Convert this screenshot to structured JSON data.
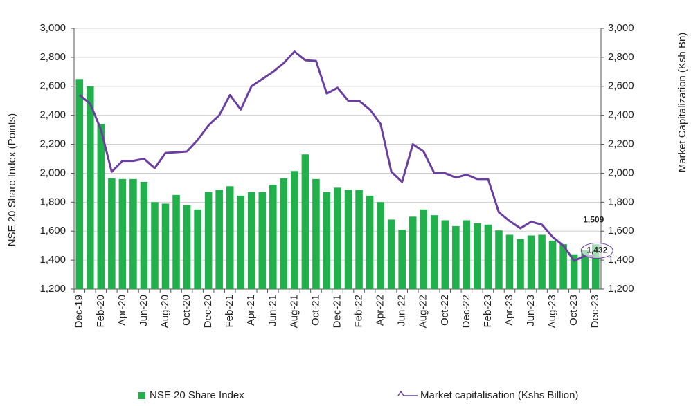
{
  "chart_data": {
    "type": "bar-line",
    "categories": [
      "Dec-19",
      null,
      "Feb-20",
      null,
      "Apr-20",
      null,
      "Jun-20",
      null,
      "Aug-20",
      null,
      "Oct-20",
      null,
      "Dec-20",
      null,
      "Feb-21",
      null,
      "Apr-21",
      null,
      "Jun-21",
      null,
      "Aug-21",
      null,
      "Oct-21",
      null,
      "Dec-21",
      null,
      "Feb-22",
      null,
      "Apr-22",
      null,
      "Jun-22",
      null,
      "Aug-22",
      null,
      "Oct-22",
      null,
      "Dec-22",
      null,
      "Feb-23",
      null,
      "Apr-23",
      null,
      "Jun-23",
      null,
      "Aug-23",
      null,
      "Oct-23",
      null,
      "Dec-23"
    ],
    "series": [
      {
        "name": "NSE 20 Share Index",
        "color": "#21b04b",
        "kind": "bar",
        "values": [
          2650,
          2600,
          2340,
          1965,
          1960,
          1960,
          1940,
          1800,
          1790,
          1850,
          1780,
          1750,
          1870,
          1885,
          1910,
          1845,
          1870,
          1870,
          1920,
          1965,
          2015,
          2130,
          1960,
          1870,
          1900,
          1885,
          1885,
          1845,
          1800,
          1680,
          1610,
          1700,
          1750,
          1710,
          1675,
          1635,
          1675,
          1655,
          1645,
          1605,
          1575,
          1545,
          1570,
          1575,
          1535,
          1510,
          1440,
          1470,
          1509
        ],
        "value_labels": [
          null,
          null,
          null,
          null,
          null,
          null,
          null,
          null,
          null,
          null,
          null,
          null,
          null,
          null,
          null,
          null,
          null,
          null,
          null,
          null,
          null,
          null,
          null,
          null,
          null,
          null,
          null,
          null,
          null,
          null,
          null,
          null,
          null,
          null,
          null,
          null,
          null,
          null,
          null,
          null,
          null,
          null,
          null,
          null,
          null,
          null,
          null,
          null,
          "1,509"
        ]
      },
      {
        "name": "Market capitalisation (Kshs Billion)",
        "color": "#6b3fa0",
        "kind": "line",
        "axis": "y2",
        "values": [
          2540,
          2480,
          2300,
          2010,
          2085,
          2085,
          2100,
          2035,
          2140,
          2145,
          2150,
          2230,
          2330,
          2400,
          2540,
          2440,
          2600,
          2650,
          2700,
          2760,
          2840,
          2780,
          2775,
          2550,
          2590,
          2500,
          2500,
          2440,
          2340,
          2010,
          1940,
          2200,
          2150,
          2000,
          2000,
          1970,
          1990,
          1960,
          1960,
          1730,
          1670,
          1620,
          1665,
          1645,
          1560,
          1500,
          1395,
          1430,
          1432
        ],
        "value_labels": [
          null,
          null,
          null,
          null,
          null,
          null,
          null,
          null,
          null,
          null,
          null,
          null,
          null,
          null,
          null,
          null,
          null,
          null,
          null,
          null,
          null,
          null,
          null,
          null,
          null,
          null,
          null,
          null,
          null,
          null,
          null,
          null,
          null,
          null,
          null,
          null,
          null,
          null,
          null,
          null,
          null,
          null,
          null,
          null,
          null,
          null,
          null,
          null,
          "1,432"
        ]
      }
    ],
    "y_label": "NSE 20 Share Index (Points)",
    "y2_label": "Market Capitalization (Ksh Bn)",
    "ylim": [
      1200,
      3000
    ],
    "yticks": [
      {
        "value": 1200,
        "label": "1,200"
      },
      {
        "value": 1400,
        "label": "1,400"
      },
      {
        "value": 1600,
        "label": "1,600"
      },
      {
        "value": 1800,
        "label": "1,800"
      },
      {
        "value": 2000,
        "label": "2,000"
      },
      {
        "value": 2200,
        "label": "2,200"
      },
      {
        "value": 2400,
        "label": "2,400"
      },
      {
        "value": 2600,
        "label": "2,600"
      },
      {
        "value": 2800,
        "label": "2,800"
      },
      {
        "value": 3000,
        "label": "3,000"
      }
    ],
    "y2lim": [
      1200,
      3000
    ],
    "y2ticks": [
      {
        "value": 1200,
        "label": "1,200"
      },
      {
        "value": 1400,
        "label": "1,400"
      },
      {
        "value": 1600,
        "label": "1,600"
      },
      {
        "value": 1800,
        "label": "1,800"
      },
      {
        "value": 2000,
        "label": "2,000"
      },
      {
        "value": 2200,
        "label": "2,200"
      },
      {
        "value": 2400,
        "label": "2,400"
      },
      {
        "value": 2600,
        "label": "2,600"
      },
      {
        "value": 2800,
        "label": "2,800"
      },
      {
        "value": 3000,
        "label": "3,000"
      }
    ],
    "grid": true
  }
}
